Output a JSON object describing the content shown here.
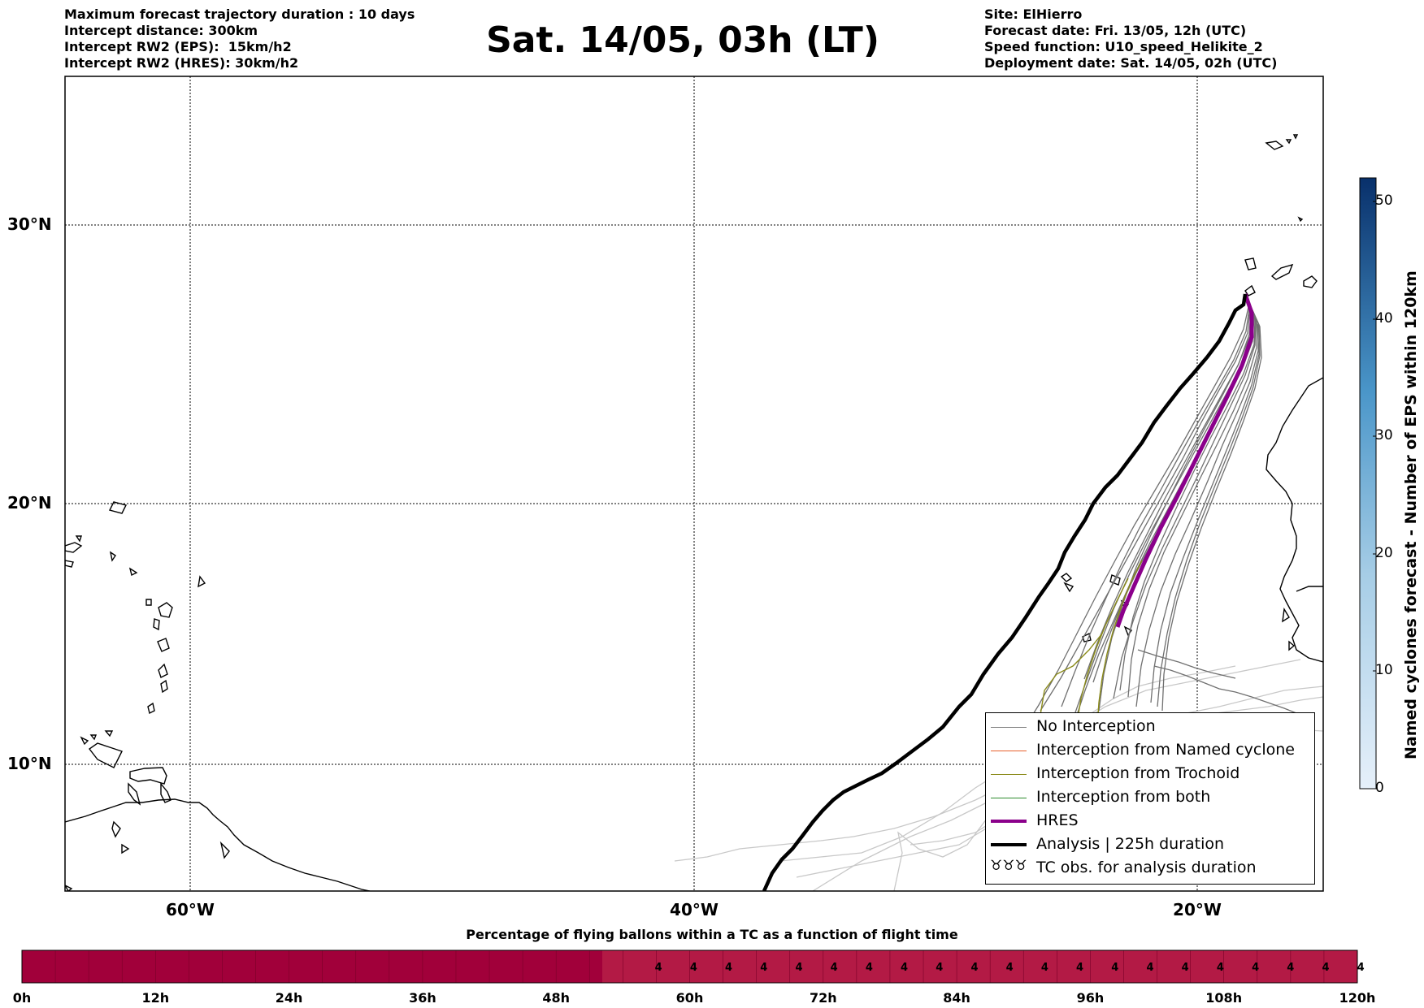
{
  "header": {
    "left_lines": [
      "Maximum forecast trajectory duration : 10 days",
      "Intercept distance: 300km",
      "Intercept RW2 (EPS):  15km/h2",
      "Intercept RW2 (HRES): 30km/h2"
    ],
    "title": "Sat. 14/05, 03h (LT)",
    "right_lines": [
      "Site: ElHierro",
      "Forecast date: Fri. 13/05, 12h (UTC)",
      "Speed function: U10_speed_Helikite_2",
      "Deployment date: Sat. 14/05, 02h (UTC)"
    ]
  },
  "map": {
    "lat_labels": [
      "30°N",
      "20°N",
      "10°N"
    ],
    "lon_labels": [
      "60°W",
      "40°W",
      "20°W"
    ]
  },
  "legend": {
    "items": [
      {
        "label": "No Interception",
        "color": "#808080"
      },
      {
        "label": "Interception from Named cyclone",
        "color": "#e8602c"
      },
      {
        "label": "Interception from Trochoid",
        "color": "#8b8b1a"
      },
      {
        "label": "Interception from both",
        "color": "#2e8b2e"
      },
      {
        "label": "HRES",
        "color": "#8b008b"
      },
      {
        "label": "Analysis | 225h duration",
        "color": "#000000"
      },
      {
        "label": "TC obs. for analysis duration",
        "symbol": "♉♉♉"
      }
    ]
  },
  "colorbar": {
    "label": "Named cyclones forecast - Number of EPS within 120km",
    "ticks": [
      "0",
      "10",
      "20",
      "30",
      "40",
      "50"
    ],
    "range": [
      0,
      52
    ],
    "colors": [
      "#e6f0fa",
      "#08306b"
    ]
  },
  "bottom_bar": {
    "title": "Percentage of flying ballons within a TC as a function of flight time",
    "ticks": [
      "0h",
      "12h",
      "24h",
      "36h",
      "48h",
      "60h",
      "72h",
      "84h",
      "96h",
      "108h",
      "120h"
    ],
    "values_start_hour": 55,
    "value": "4",
    "value_count": 21,
    "colors": {
      "low": "#a1003a",
      "high": "#b31a45"
    }
  }
}
